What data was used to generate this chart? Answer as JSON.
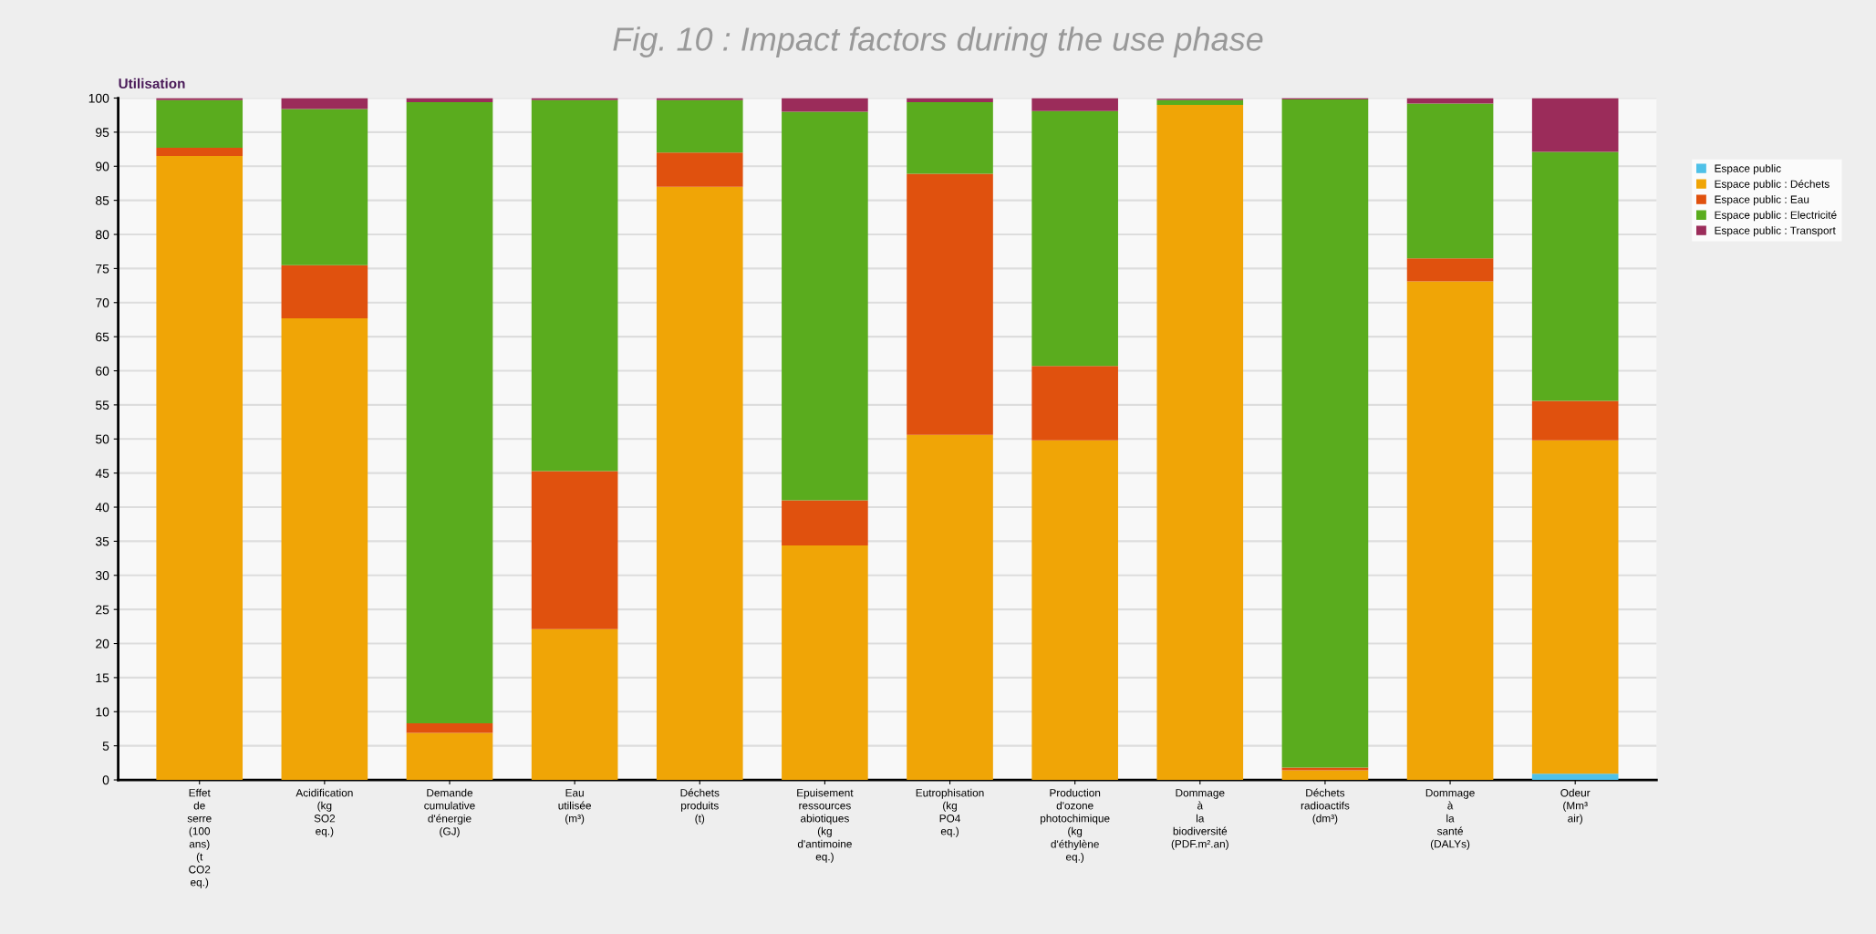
{
  "chart_data": {
    "type": "bar",
    "stacked": true,
    "title": "Fig. 10 : Impact factors during the use phase",
    "subtitle": "Utilisation",
    "categories": [
      "Effet\nde\nserre\n(100\nans)\n(t\nCO2\neq.)",
      "Acidification\n(kg\nSO2\neq.)",
      "Demande\ncumulative\nd'énergie\n(GJ)",
      "Eau\nutilisée\n(m³)",
      "Déchets\nproduits\n(t)",
      "Epuisement\nressources\nabiotiques\n(kg\nd'antimoine\neq.)",
      "Eutrophisation\n(kg\nPO4\neq.)",
      "Production\nd'ozone\nphotochimique\n(kg\nd'éthylène\neq.)",
      "Dommage\nà\nla\nbiodiversité\n(PDF.m².an)",
      "Déchets\nradioactifs\n(dm³)",
      "Dommage\nà\nla\nsanté\n(DALYs)",
      "Odeur\n(Mm³\nair)"
    ],
    "series": [
      {
        "name": "Espace public",
        "color": "#4fc1e8",
        "values": [
          0,
          0,
          0,
          0,
          0,
          0,
          0,
          0,
          0,
          0,
          0,
          0.9
        ]
      },
      {
        "name": "Espace public : Déchets",
        "color": "#f0a506",
        "values": [
          91.5,
          67.7,
          6.9,
          22.1,
          87.0,
          34.4,
          50.6,
          49.8,
          99.0,
          1.4,
          73.1,
          48.9
        ]
      },
      {
        "name": "Espace public : Eau",
        "color": "#e0510e",
        "values": [
          1.2,
          7.8,
          1.4,
          23.2,
          5.0,
          6.6,
          38.3,
          10.9,
          null,
          0.4,
          3.4,
          5.8
        ]
      },
      {
        "name": "Espace public : Electricité",
        "color": "#5aac1e",
        "values": [
          7.0,
          22.9,
          91.1,
          54.4,
          7.7,
          57.0,
          10.5,
          37.4,
          0.7,
          98.0,
          22.7,
          36.5
        ]
      },
      {
        "name": "Espace public : Transport",
        "color": "#9b2c5a",
        "values": [
          0.3,
          1.6,
          0.6,
          0.3,
          0.3,
          2.0,
          0.6,
          1.9,
          0.2,
          0.2,
          0.8,
          7.9
        ]
      }
    ],
    "ylim": [
      0,
      100
    ],
    "yticks": [
      0,
      5,
      10,
      15,
      20,
      25,
      30,
      35,
      40,
      45,
      50,
      55,
      60,
      65,
      70,
      75,
      80,
      85,
      90,
      95,
      100
    ],
    "grid": "y",
    "legend": "right"
  }
}
